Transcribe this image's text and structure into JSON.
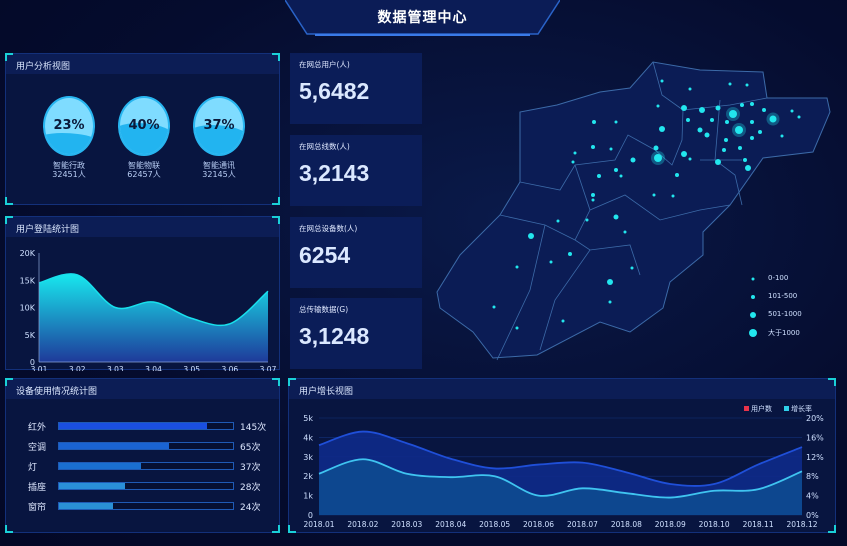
{
  "header": {
    "title": "数据管理中心"
  },
  "user_analysis": {
    "title": "用户分析视图",
    "items": [
      {
        "percent": "23%",
        "fill": 0.23,
        "name": "智能行政",
        "count": "32451人"
      },
      {
        "percent": "40%",
        "fill": 0.4,
        "name": "智能物联",
        "count": "62457人"
      },
      {
        "percent": "37%",
        "fill": 0.37,
        "name": "智能通讯",
        "count": "32145人"
      }
    ]
  },
  "login_chart": {
    "title": "用户登陆统计图"
  },
  "stats": [
    {
      "label": "在网总用户(人)",
      "value": "5,6482"
    },
    {
      "label": "在网总线数(人)",
      "value": "3,2143"
    },
    {
      "label": "在网总设备数(人)",
      "value": "6254"
    },
    {
      "label": "总传输数据(G)",
      "value": "3,1248"
    }
  ],
  "map": {
    "legend": [
      "0-100",
      "101-500",
      "501-1000",
      "大于1000"
    ],
    "dot_color": "#22e6ee"
  },
  "device_usage": {
    "title": "设备使用情况统计图",
    "items": [
      {
        "name": "红外",
        "value": "145次",
        "fill": 0.85,
        "color": "#1a4fe0"
      },
      {
        "name": "空调",
        "value": "65次",
        "fill": 0.63,
        "color": "#1a63d2"
      },
      {
        "name": "灯",
        "value": "37次",
        "fill": 0.47,
        "color": "#1a6fd0"
      },
      {
        "name": "插座",
        "value": "28次",
        "fill": 0.38,
        "color": "#2a8fd8"
      },
      {
        "name": "窗帘",
        "value": "24次",
        "fill": 0.31,
        "color": "#2a90d6"
      }
    ]
  },
  "growth_chart": {
    "title": "用户增长视图"
  },
  "chart_data": [
    {
      "type": "area",
      "title": "用户登陆统计图",
      "categories": [
        "3.01",
        "3.02",
        "3.03",
        "3.04",
        "3.05",
        "3.06",
        "3.07"
      ],
      "values": [
        14500,
        16000,
        10000,
        11000,
        8000,
        7000,
        13000
      ],
      "ylim": [
        0,
        20000
      ],
      "yticks": [
        "0",
        "5K",
        "10K",
        "15K",
        "20K"
      ],
      "color": "#18e0ec"
    },
    {
      "type": "area",
      "title": "用户增长视图",
      "categories": [
        "2018.01",
        "2018.02",
        "2018.03",
        "2018.04",
        "2018.05",
        "2018.06",
        "2018.07",
        "2018.08",
        "2018.09",
        "2018.10",
        "2018.11",
        "2018.12"
      ],
      "series": [
        {
          "name": "用户数",
          "axis": "left",
          "values": [
            3600,
            4300,
            3700,
            2900,
            2400,
            2600,
            2700,
            2200,
            1600,
            1600,
            2600,
            3500
          ],
          "legend_color": "#e8334a",
          "line_color": "#1f4fd8"
        },
        {
          "name": "增长率",
          "axis": "right",
          "values": [
            8.5,
            11.5,
            8.5,
            7.8,
            8,
            4,
            5.5,
            4.5,
            3.6,
            5,
            5.3,
            9
          ],
          "legend_color": "#2fd0ea",
          "line_color": "#3fc4f0"
        }
      ],
      "ylim_left": [
        0,
        5000
      ],
      "yticks_left": [
        "0",
        "1k",
        "2k",
        "3k",
        "4k",
        "5k"
      ],
      "ylim_right": [
        0,
        20
      ],
      "yticks_right": [
        "0%",
        "4%",
        "8%",
        "12%",
        "16%",
        "20%"
      ],
      "grid": true,
      "legend": "top-right"
    }
  ]
}
